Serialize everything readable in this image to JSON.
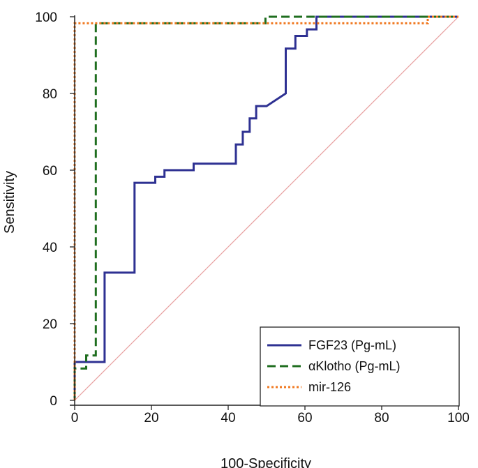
{
  "chart_data": {
    "type": "line",
    "title": "",
    "xlabel": "100-Specificity",
    "ylabel": "Sensitivity",
    "xlim": [
      0,
      100
    ],
    "ylim": [
      0,
      100
    ],
    "xticks": [
      0,
      20,
      40,
      60,
      80,
      100
    ],
    "yticks": [
      0,
      20,
      40,
      60,
      80,
      100
    ],
    "legend_position": "bottom-right",
    "grid": false,
    "reference_line": {
      "x": [
        0,
        100
      ],
      "y": [
        0,
        100
      ],
      "color": "#e8a0a0",
      "style": "solid"
    },
    "series": [
      {
        "name": "FGF23 (Pg-mL)",
        "color": "#2e3192",
        "style": "solid",
        "x": [
          0,
          0,
          1.5,
          7.8,
          7.8,
          15.6,
          15.6,
          21,
          21,
          23.4,
          23.4,
          31,
          31,
          42,
          42,
          43.8,
          43.8,
          45.6,
          45.6,
          47.3,
          47.3,
          50,
          55,
          55,
          57.5,
          57.5,
          60.5,
          60.5,
          63,
          63,
          100
        ],
        "y": [
          0,
          10,
          10,
          10,
          33.3,
          33.3,
          56.7,
          56.7,
          58.3,
          58.3,
          60,
          60,
          61.7,
          61.7,
          66.7,
          66.7,
          70,
          70,
          73.5,
          73.5,
          76.7,
          76.7,
          80,
          91.7,
          91.7,
          95,
          95,
          96.7,
          96.7,
          100,
          100
        ]
      },
      {
        "name": "αKlotho (Pg-mL)",
        "color": "#1f6e1f",
        "style": "dashed",
        "x": [
          0,
          0,
          3,
          3,
          5.5,
          5.5,
          49.7,
          49.7,
          100
        ],
        "y": [
          0,
          8.3,
          8.3,
          11.7,
          11.7,
          98.3,
          98.3,
          100,
          100
        ]
      },
      {
        "name": "mir-126",
        "color": "#f07820",
        "style": "dotted",
        "x": [
          0,
          0,
          92,
          92,
          100
        ],
        "y": [
          0,
          98.3,
          98.3,
          100,
          100
        ]
      }
    ]
  }
}
